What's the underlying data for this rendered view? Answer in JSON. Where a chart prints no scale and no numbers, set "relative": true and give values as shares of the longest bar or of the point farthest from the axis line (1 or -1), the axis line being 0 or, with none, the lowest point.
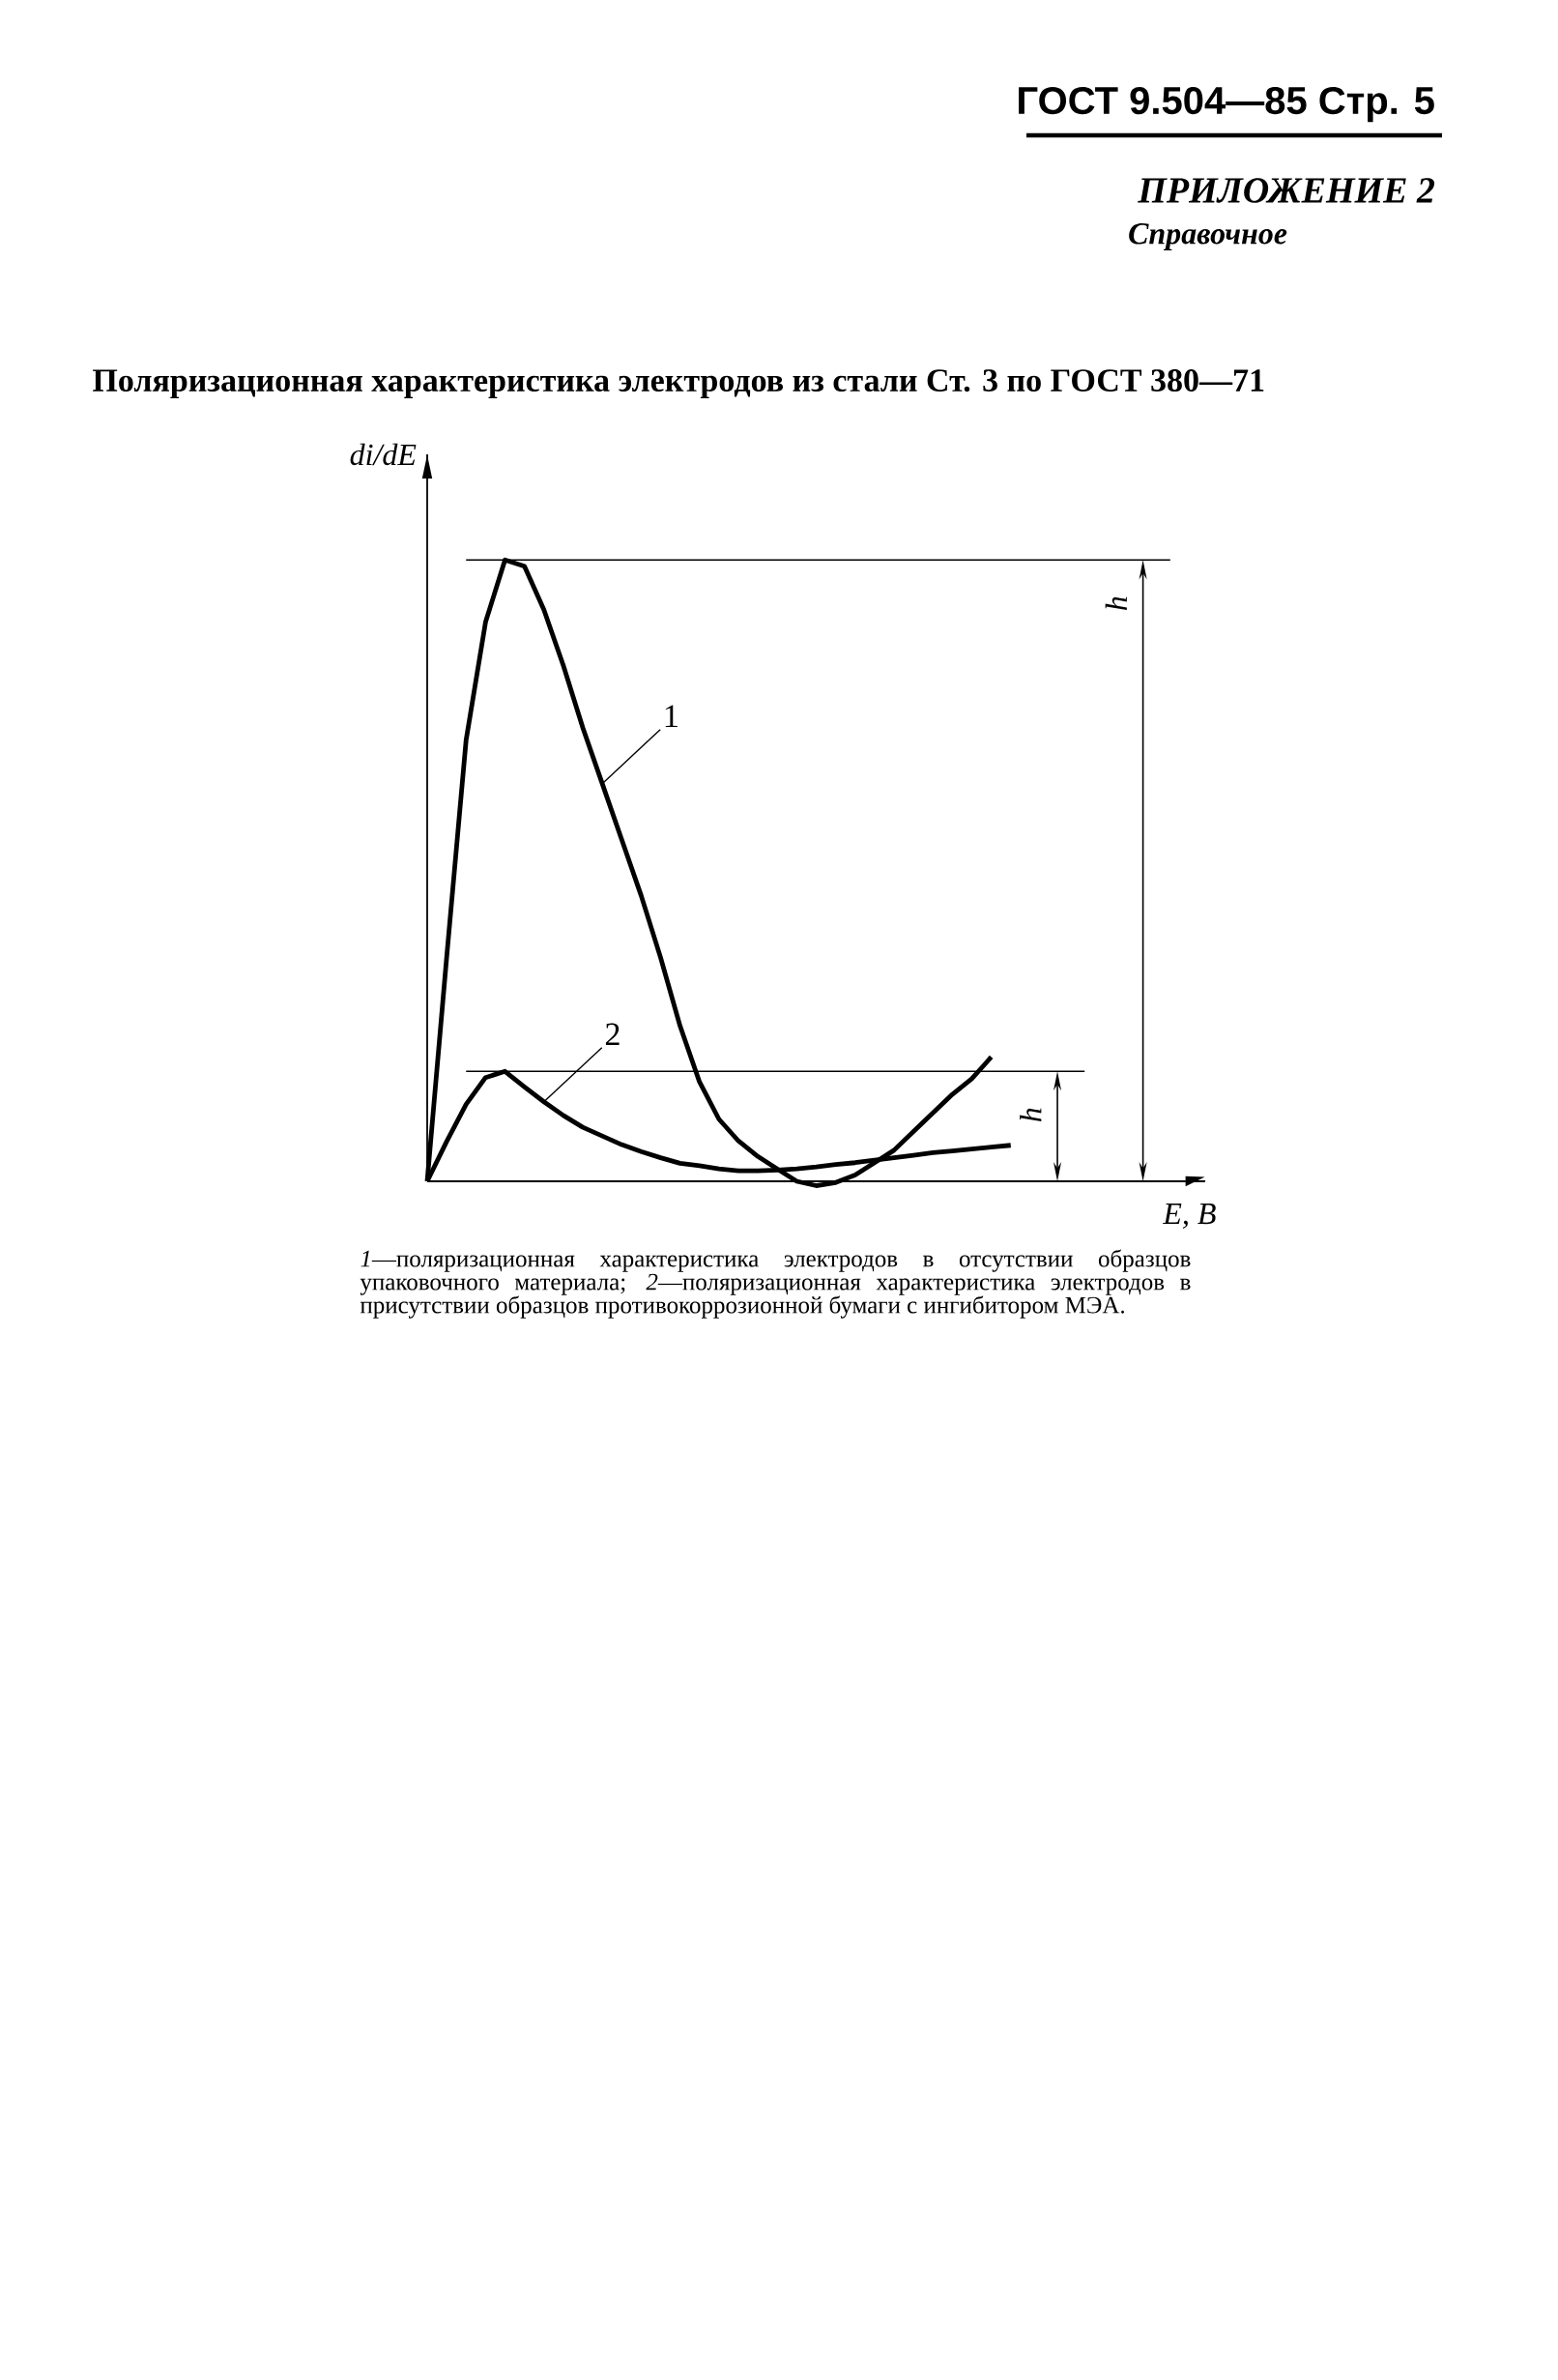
{
  "chart_data": {
    "type": "line",
    "relative": true,
    "title": "Поляризационная характеристика электродов из стали Ст. 3 по ГОСТ 380—71",
    "xlabel": "E, B",
    "ylabel": "di/dE",
    "categories": [
      null,
      null,
      null,
      null,
      null,
      null,
      null,
      null,
      null,
      null,
      null,
      null,
      null,
      null,
      null,
      null,
      null,
      null,
      null,
      null,
      null,
      null,
      null,
      null,
      null,
      null,
      null,
      null,
      null,
      null,
      null
    ],
    "series": [
      {
        "color": "#000000",
        "values": [
          0,
          0.36,
          0.71,
          0.9,
          1.0,
          0.99,
          0.92,
          0.83,
          0.73,
          0.64,
          0.55,
          0.46,
          0.36,
          0.25,
          0.16,
          0.1,
          0.065,
          0.04,
          0.02,
          0,
          -0.007,
          -0.002,
          0.01,
          0.03,
          0.05,
          0.08,
          0.11,
          0.14,
          0.165,
          0.2,
          null
        ]
      },
      {
        "color": "#000000",
        "values": [
          0,
          0.064,
          0.124,
          0.167,
          0.177,
          0.152,
          0.128,
          0.106,
          0.087,
          0.073,
          0.059,
          0.048,
          0.038,
          0.029,
          0.025,
          0.02,
          0.017,
          0.017,
          0.018,
          0.02,
          0.023,
          0.027,
          0.03,
          0.034,
          0.038,
          0.042,
          0.046,
          0.049,
          0.052,
          0.055,
          0.058
        ]
      }
    ],
    "ref_lines": [
      {
        "axis": "y",
        "value": 1.0,
        "label": "h"
      },
      {
        "axis": "y",
        "value": 0.177,
        "label": "h"
      }
    ],
    "annotations": [
      "ГОСТ 9.504—85 Стр. 5",
      "ПРИЛОЖЕНИЕ 2",
      "Справочное",
      "*1*—поляризационная характеристика электродов в отсутствии образцов упаковочного материала; *2*—поляризационная характеристика электродов в присутствии образцов противокоррозионной бумаги с ингибитором МЭА.",
      "1",
      "2"
    ]
  }
}
